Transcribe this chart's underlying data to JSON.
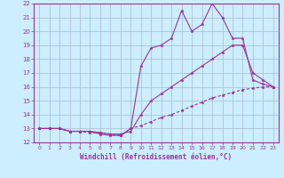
{
  "x": [
    0,
    1,
    2,
    3,
    4,
    5,
    6,
    7,
    8,
    9,
    10,
    11,
    12,
    13,
    14,
    15,
    16,
    17,
    18,
    19,
    20,
    21,
    22,
    23
  ],
  "line1": [
    13.0,
    13.0,
    13.0,
    12.8,
    12.8,
    12.8,
    12.6,
    12.5,
    12.5,
    13.0,
    17.5,
    18.8,
    19.0,
    19.5,
    21.5,
    20.0,
    20.5,
    22.0,
    21.0,
    19.5,
    19.5,
    16.5,
    16.2,
    16.0
  ],
  "line2": [
    13.0,
    13.0,
    13.0,
    12.8,
    12.8,
    12.8,
    12.7,
    12.6,
    12.6,
    12.8,
    14.0,
    15.0,
    15.5,
    16.0,
    16.5,
    17.0,
    17.5,
    18.0,
    18.5,
    19.0,
    19.0,
    17.0,
    16.5,
    16.0
  ],
  "line3": [
    13.0,
    13.0,
    13.0,
    12.8,
    12.8,
    12.7,
    12.7,
    12.6,
    12.5,
    13.0,
    13.2,
    13.5,
    13.8,
    14.0,
    14.3,
    14.6,
    14.9,
    15.2,
    15.4,
    15.6,
    15.8,
    15.9,
    16.0,
    16.0
  ],
  "bg_color": "#cceeff",
  "line_color": "#993399",
  "grid_color": "#aabbcc",
  "xlabel": "Windchill (Refroidissement éolien,°C)",
  "xlim": [
    -0.5,
    23.5
  ],
  "ylim": [
    12,
    22
  ],
  "yticks": [
    12,
    13,
    14,
    15,
    16,
    17,
    18,
    19,
    20,
    21,
    22
  ],
  "xticks": [
    0,
    1,
    2,
    3,
    4,
    5,
    6,
    7,
    8,
    9,
    10,
    11,
    12,
    13,
    14,
    15,
    16,
    17,
    18,
    19,
    20,
    21,
    22,
    23
  ]
}
